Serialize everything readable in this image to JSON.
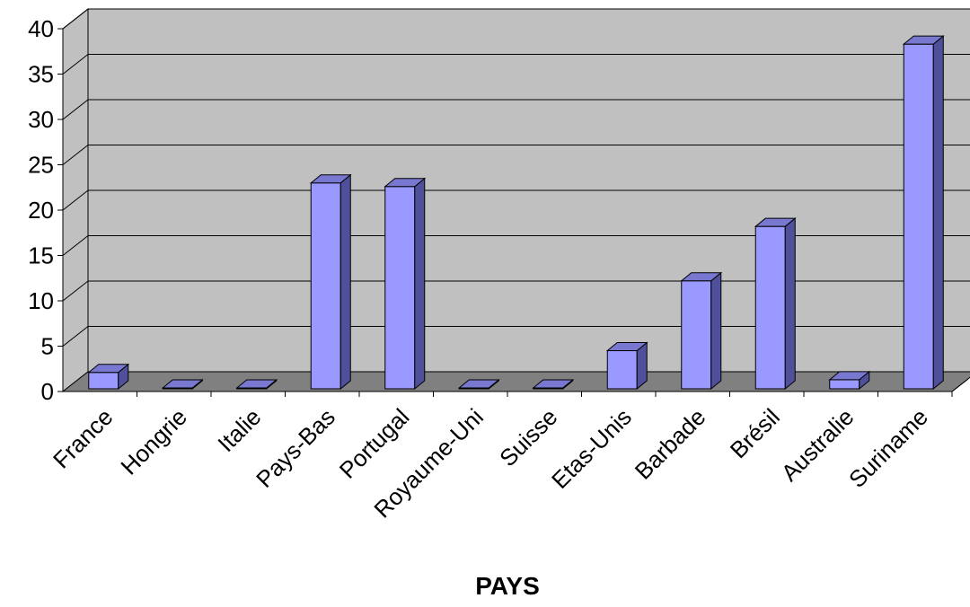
{
  "chart_data": {
    "type": "bar",
    "xlabel": "PAYS",
    "ylabel": "",
    "ylim": [
      0,
      40
    ],
    "yticks": [
      0,
      5,
      10,
      15,
      20,
      25,
      30,
      35,
      40
    ],
    "grid": true,
    "style": "3d",
    "colors": {
      "bar_front": "#9999ff",
      "bar_side": "#4f4f9a",
      "bar_top": "#7878d0",
      "back_wall": "#c0c0c0",
      "floor": "#808080"
    },
    "categories": [
      "France",
      "Hongrie",
      "Italie",
      "Pays-Bas",
      "Portugal",
      "Royaume-Uni",
      "Suisse",
      "Etas-Unis",
      "Barbade",
      "Brésil",
      "Australie",
      "Suriname"
    ],
    "values": [
      2.1,
      0.4,
      0.1,
      23,
      22.6,
      0.1,
      0.1,
      4.5,
      12.2,
      18.2,
      1.3,
      38.3
    ]
  }
}
